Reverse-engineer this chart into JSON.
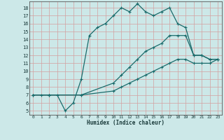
{
  "xlabel": "Humidex (Indice chaleur)",
  "xlim": [
    -0.5,
    23.5
  ],
  "ylim": [
    4.5,
    18.8
  ],
  "xticks": [
    0,
    1,
    2,
    3,
    4,
    5,
    6,
    7,
    8,
    9,
    10,
    11,
    12,
    13,
    14,
    15,
    16,
    17,
    18,
    19,
    20,
    21,
    22,
    23
  ],
  "yticks": [
    5,
    6,
    7,
    8,
    9,
    10,
    11,
    12,
    13,
    14,
    15,
    16,
    17,
    18
  ],
  "bg_color": "#cce8e8",
  "grid_color": "#aad4d4",
  "line_color": "#1a6b6b",
  "line1_x": [
    0,
    1,
    2,
    3,
    4,
    5,
    6,
    7,
    8,
    9,
    10,
    11,
    12,
    13,
    14,
    15,
    16,
    17,
    18,
    19,
    20,
    21,
    22,
    23
  ],
  "line1_y": [
    7.0,
    7.0,
    7.0,
    7.0,
    5.0,
    6.0,
    9.0,
    14.5,
    15.5,
    16.0,
    17.0,
    18.0,
    17.5,
    18.5,
    17.5,
    17.0,
    17.5,
    18.0,
    16.0,
    15.5,
    12.0,
    12.0,
    11.5,
    11.5
  ],
  "line2_x": [
    0,
    2,
    6,
    10,
    11,
    12,
    13,
    14,
    15,
    16,
    17,
    18,
    19,
    20,
    21,
    22,
    23
  ],
  "line2_y": [
    7.0,
    7.0,
    7.0,
    8.5,
    9.5,
    10.5,
    11.5,
    12.5,
    13.0,
    13.5,
    14.5,
    14.5,
    14.5,
    12.0,
    12.0,
    11.5,
    11.5
  ],
  "line3_x": [
    0,
    2,
    6,
    10,
    11,
    12,
    13,
    14,
    15,
    16,
    17,
    18,
    19,
    20,
    21,
    22,
    23
  ],
  "line3_y": [
    7.0,
    7.0,
    7.0,
    7.5,
    8.0,
    8.5,
    9.0,
    9.5,
    10.0,
    10.5,
    11.0,
    11.5,
    11.5,
    11.0,
    11.0,
    11.0,
    11.5
  ]
}
